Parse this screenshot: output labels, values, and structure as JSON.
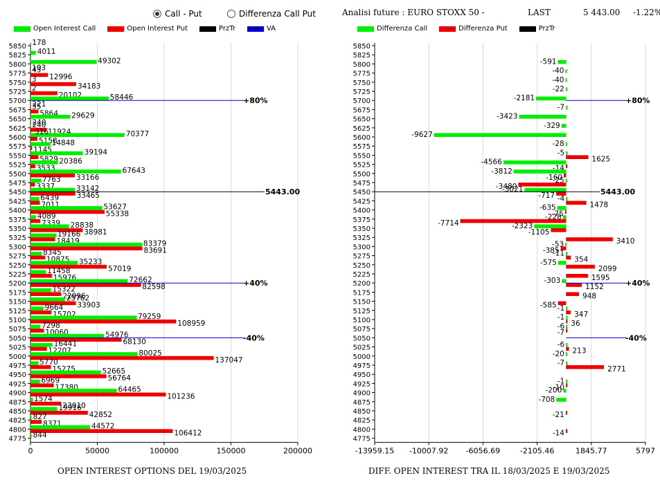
{
  "mode_radio": {
    "options": [
      "Call - Put",
      "Differenza Call Put"
    ],
    "selected": 0
  },
  "header": {
    "title": "Analisi future : EURO STOXX 50 -",
    "last_label": "LAST",
    "last_value": "5 443.00",
    "change": "-1.22%"
  },
  "colors": {
    "call": "#00ee00",
    "put": "#ee0000",
    "przTr": "#000000",
    "va": "#0000cc"
  },
  "chart_data": [
    {
      "type": "bar",
      "orientation": "horizontal",
      "caption": "OPEN INTEREST OPTIONS DEL 19/03/2025",
      "legend": [
        "Open Interest Call",
        "Open Interest Put",
        "PrzTr",
        "VA"
      ],
      "strikes": [
        5850,
        5825,
        5800,
        5775,
        5750,
        5725,
        5700,
        5675,
        5650,
        5625,
        5600,
        5575,
        5550,
        5525,
        5500,
        5475,
        5450,
        5425,
        5400,
        5375,
        5350,
        5325,
        5300,
        5275,
        5250,
        5225,
        5200,
        5175,
        5150,
        5125,
        5100,
        5075,
        5050,
        5025,
        5000,
        4975,
        4950,
        4925,
        4900,
        4875,
        4850,
        4825,
        4800,
        4775
      ],
      "series": [
        {
          "name": "Open Interest Call",
          "values": [
            178,
            4011,
            49302,
            43,
            3,
            2,
            58446,
            35,
            29629,
            240,
            70377,
            14848,
            39194,
            20386,
            67643,
            7763,
            33142,
            6439,
            53627,
            4089,
            28838,
            19166,
            83379,
            8345,
            35233,
            11458,
            72662,
            15322,
            25762,
            9664,
            79259,
            7298,
            54976,
            16441,
            80025,
            5770,
            52665,
            6969,
            64465,
            1574,
            19916,
            827,
            44572,
            844
          ]
        },
        {
          "name": "Open Interest Put",
          "values": [
            0,
            0,
            103,
            12996,
            34183,
            20102,
            221,
            5864,
            240,
            11924,
            5158,
            1145,
            5829,
            3533,
            33166,
            3337,
            33465,
            7011,
            55338,
            7339,
            38981,
            18419,
            83691,
            10875,
            57019,
            15976,
            82598,
            22996,
            33903,
            15702,
            108959,
            10060,
            68130,
            12207,
            137047,
            15275,
            56764,
            17380,
            101236,
            23010,
            42852,
            8371,
            106412,
            0
          ]
        }
      ],
      "extra_labels": [
        "516"
      ],
      "przTr": {
        "value": "5443.00",
        "strike": 5450
      },
      "va_lines": [
        {
          "label": "+80%",
          "strike": 5700
        },
        {
          "label": "+40%",
          "strike": 5200
        },
        {
          "label": "-40%",
          "strike": 5050
        }
      ],
      "xticks": [
        "0",
        "50000",
        "100000",
        "150000",
        "200000"
      ],
      "xlim": [
        0,
        200000
      ]
    },
    {
      "type": "bar",
      "orientation": "horizontal",
      "caption": "DIFF. OPEN INTEREST TRA IL 18/03/2025 E 19/03/2025",
      "legend": [
        "Differenza Call",
        "Differenza Put",
        "PrzTr"
      ],
      "series": [
        {
          "name": "Differenza Call",
          "values": [
            null,
            null,
            -591,
            -40,
            -40,
            -22,
            -2181,
            -7,
            -3423,
            -329,
            -9627,
            -28,
            -5,
            -4566,
            -3812,
            -25,
            -3021,
            -4,
            -635,
            -228,
            -2323,
            null,
            -53,
            -11,
            -575,
            null,
            -303,
            null,
            null,
            -1,
            -1,
            -6,
            null,
            -6,
            -20,
            -7,
            null,
            -1,
            -200,
            -708,
            null,
            null,
            null,
            null
          ]
        },
        {
          "name": "Differenza Put",
          "values": [
            null,
            null,
            null,
            null,
            null,
            null,
            null,
            null,
            null,
            null,
            null,
            null,
            1625,
            -14,
            -160,
            -3480,
            -717,
            1478,
            -75,
            -7714,
            -1105,
            3410,
            -385,
            354,
            2099,
            1595,
            1152,
            948,
            -585,
            347,
            36,
            -7,
            null,
            213,
            null,
            2771,
            null,
            -10,
            null,
            null,
            -21,
            null,
            -14,
            null
          ]
        }
      ],
      "przTr": {
        "value": "5443.00",
        "strike": 5450
      },
      "va_lines": [
        {
          "label": "+80%",
          "strike": 5700
        },
        {
          "label": "+40%",
          "strike": 5200
        },
        {
          "label": "-40%",
          "strike": 5050
        }
      ],
      "xticks": [
        "-13959.15",
        "-10007.92",
        "-6056.69",
        "-2105.46",
        "1845.77",
        "5797"
      ],
      "xlim": [
        -13959.15,
        5797
      ]
    }
  ]
}
